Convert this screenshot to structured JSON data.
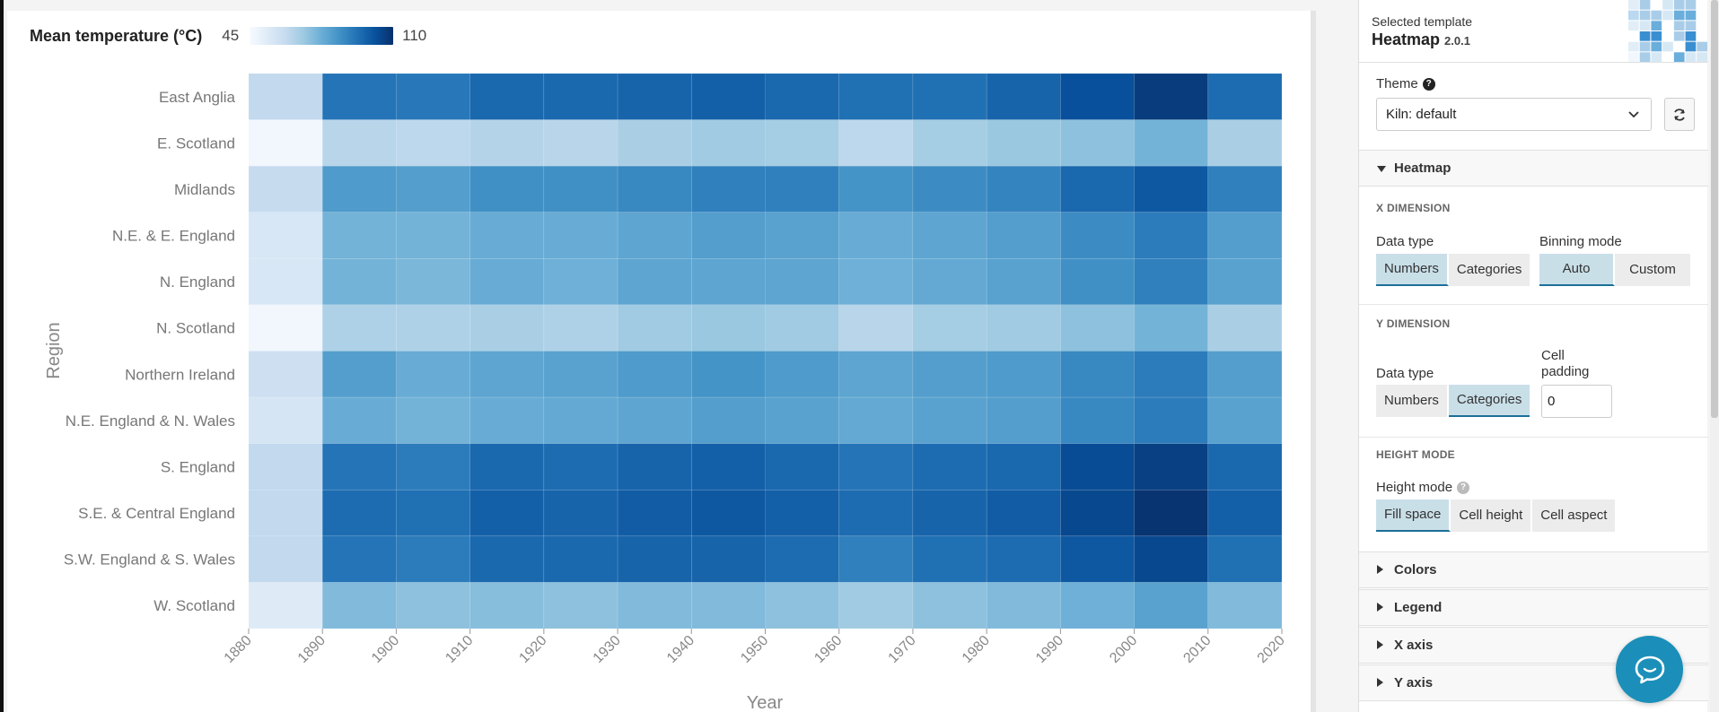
{
  "legend": {
    "title": "Mean temperature (°C)",
    "min": "45",
    "max": "110"
  },
  "colors": {
    "scale_low": "#f7fbff",
    "scale_high": "#08306b",
    "accent": "#1c6f98",
    "chat_button": "#1b8fb9"
  },
  "chart_data": {
    "type": "heatmap",
    "xlabel": "Year",
    "ylabel": "Region",
    "x_ticks": [
      "1880",
      "1890",
      "1900",
      "1910",
      "1920",
      "1930",
      "1940",
      "1950",
      "1960",
      "1970",
      "1980",
      "1990",
      "2000",
      "2010",
      "2020"
    ],
    "x_bins": [
      [
        1880,
        1890
      ],
      [
        1890,
        1900
      ],
      [
        1900,
        1910
      ],
      [
        1910,
        1920
      ],
      [
        1920,
        1930
      ],
      [
        1930,
        1940
      ],
      [
        1940,
        1950
      ],
      [
        1950,
        1960
      ],
      [
        1960,
        1970
      ],
      [
        1970,
        1980
      ],
      [
        1980,
        1990
      ],
      [
        1990,
        2000
      ],
      [
        2000,
        2010
      ],
      [
        2010,
        2020
      ]
    ],
    "y_categories": [
      "East Anglia",
      "E. Scotland",
      "Midlands",
      "N.E. & E. England",
      "N. England",
      "N. Scotland",
      "Northern Ireland",
      "N.E. England & N. Wales",
      "S. England",
      "S.E. & Central England",
      "S.W. England & S. Wales",
      "W. Scotland"
    ],
    "color_range": [
      45,
      110
    ],
    "values": [
      [
        62,
        93,
        92,
        96,
        96,
        97,
        98,
        96,
        94,
        94,
        97,
        102,
        107,
        95
      ],
      [
        47,
        64,
        63,
        65,
        64,
        67,
        69,
        68,
        63,
        68,
        70,
        72,
        76,
        67
      ],
      [
        61,
        83,
        82,
        86,
        86,
        88,
        90,
        90,
        85,
        87,
        89,
        96,
        100,
        90
      ],
      [
        55,
        76,
        76,
        78,
        78,
        80,
        82,
        81,
        78,
        80,
        82,
        87,
        91,
        82
      ],
      [
        55,
        76,
        75,
        78,
        77,
        80,
        80,
        80,
        77,
        79,
        81,
        86,
        90,
        81
      ],
      [
        47,
        66,
        66,
        67,
        66,
        69,
        70,
        69,
        64,
        68,
        69,
        72,
        76,
        67
      ],
      [
        59,
        82,
        78,
        80,
        81,
        83,
        85,
        83,
        80,
        82,
        83,
        88,
        91,
        82
      ],
      [
        56,
        78,
        76,
        78,
        79,
        80,
        82,
        81,
        79,
        81,
        82,
        88,
        91,
        81
      ],
      [
        62,
        93,
        91,
        96,
        95,
        97,
        98,
        96,
        93,
        95,
        96,
        103,
        106,
        96
      ],
      [
        62,
        95,
        94,
        98,
        97,
        99,
        100,
        98,
        95,
        97,
        99,
        104,
        109,
        98
      ],
      [
        62,
        93,
        91,
        96,
        96,
        97,
        97,
        95,
        90,
        94,
        95,
        100,
        104,
        94
      ],
      [
        53,
        74,
        72,
        73,
        72,
        74,
        74,
        72,
        69,
        72,
        74,
        77,
        81,
        74
      ]
    ]
  },
  "panel": {
    "template_label": "Selected template",
    "template_name": "Heatmap",
    "template_version": "2.0.1",
    "theme_label": "Theme",
    "theme_value": "Kiln: default",
    "heatmap_section": "Heatmap",
    "x_dimension": "X DIMENSION",
    "x_data_type_label": "Data type",
    "x_data_type_options": [
      "Numbers",
      "Categories"
    ],
    "binning_mode_label": "Binning mode",
    "binning_mode_options": [
      "Auto",
      "Custom"
    ],
    "y_dimension": "Y DIMENSION",
    "y_data_type_label": "Data type",
    "y_data_type_options": [
      "Numbers",
      "Categories"
    ],
    "cell_padding_label": "Cell padding",
    "cell_padding_value": "0",
    "height_mode_head": "HEIGHT MODE",
    "height_mode_label": "Height mode",
    "height_mode_options": [
      "Fill space",
      "Cell height",
      "Cell aspect"
    ],
    "collapsed_sections": [
      "Colors",
      "Legend",
      "X axis",
      "Y axis"
    ]
  },
  "icons": {
    "help": "question-circle-icon",
    "dropdown": "chevron-down-icon",
    "refresh": "refresh-icon",
    "chat": "chat-bubble-icon"
  }
}
